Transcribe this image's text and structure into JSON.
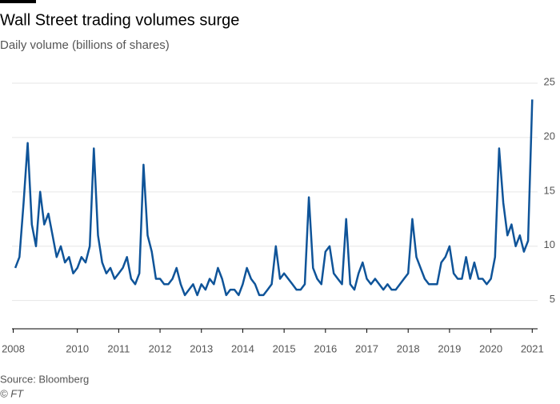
{
  "chart_data": {
    "type": "line",
    "title": "Wall Street trading volumes surge",
    "subtitle": "Daily volume (billions of shares)",
    "source": "Source: Bloomberg",
    "credit": "© FT",
    "xlim": [
      2008.42,
      2021.13
    ],
    "xticks": [
      {
        "value": 2008.45,
        "label": "2008"
      },
      2010,
      2011,
      2012,
      2013,
      2014,
      2015,
      2016,
      2017,
      2018,
      2019,
      2020,
      2021
    ],
    "ylim": [
      2.4,
      25
    ],
    "yticks": [
      5,
      10,
      15,
      20,
      25
    ],
    "grid": true,
    "x": [
      2008.5,
      2008.6,
      2008.7,
      2008.8,
      2008.9,
      2009.0,
      2009.1,
      2009.2,
      2009.3,
      2009.4,
      2009.5,
      2009.6,
      2009.7,
      2009.8,
      2009.9,
      2010.0,
      2010.1,
      2010.2,
      2010.3,
      2010.4,
      2010.5,
      2010.6,
      2010.7,
      2010.8,
      2010.9,
      2011.0,
      2011.1,
      2011.2,
      2011.3,
      2011.4,
      2011.5,
      2011.6,
      2011.7,
      2011.8,
      2011.9,
      2012.0,
      2012.1,
      2012.2,
      2012.3,
      2012.4,
      2012.5,
      2012.6,
      2012.7,
      2012.8,
      2012.9,
      2013.0,
      2013.1,
      2013.2,
      2013.3,
      2013.4,
      2013.5,
      2013.6,
      2013.7,
      2013.8,
      2013.9,
      2014.0,
      2014.1,
      2014.2,
      2014.3,
      2014.4,
      2014.5,
      2014.6,
      2014.7,
      2014.8,
      2014.9,
      2015.0,
      2015.1,
      2015.2,
      2015.3,
      2015.4,
      2015.5,
      2015.6,
      2015.7,
      2015.8,
      2015.9,
      2016.0,
      2016.1,
      2016.2,
      2016.3,
      2016.4,
      2016.5,
      2016.6,
      2016.7,
      2016.8,
      2016.9,
      2017.0,
      2017.1,
      2017.2,
      2017.3,
      2017.4,
      2017.5,
      2017.6,
      2017.7,
      2017.8,
      2017.9,
      2018.0,
      2018.1,
      2018.2,
      2018.3,
      2018.4,
      2018.5,
      2018.6,
      2018.7,
      2018.8,
      2018.9,
      2019.0,
      2019.1,
      2019.2,
      2019.3,
      2019.4,
      2019.5,
      2019.6,
      2019.7,
      2019.8,
      2019.9,
      2020.0,
      2020.1,
      2020.2,
      2020.3,
      2020.4,
      2020.5,
      2020.6,
      2020.7,
      2020.8,
      2020.9,
      2021.0
    ],
    "series": [
      {
        "name": "Daily volume",
        "color": "#0f5499",
        "values": [
          8,
          9,
          14,
          19.5,
          12,
          10,
          15,
          12,
          13,
          11,
          9,
          10,
          8.5,
          9,
          7.5,
          8,
          9,
          8.5,
          10,
          19,
          11,
          8.5,
          7.5,
          8,
          7,
          7.5,
          8,
          9,
          7,
          6.5,
          7.5,
          17.5,
          11,
          9.5,
          7,
          7,
          6.5,
          6.5,
          7,
          8,
          6.5,
          5.5,
          6,
          6.5,
          5.5,
          6.5,
          6,
          7,
          6.5,
          8,
          7,
          5.5,
          6,
          6,
          5.5,
          6.5,
          8,
          7,
          6.5,
          5.5,
          5.5,
          6,
          6.5,
          10,
          7,
          7.5,
          7,
          6.5,
          6,
          6,
          6.5,
          14.5,
          8,
          7,
          6.5,
          9.5,
          10,
          7.5,
          7,
          6.5,
          12.5,
          6.5,
          6,
          7.5,
          8.5,
          7,
          6.5,
          7,
          6.5,
          6,
          6.5,
          6,
          6,
          6.5,
          7,
          7.5,
          12.5,
          9,
          8,
          7,
          6.5,
          6.5,
          6.5,
          8.5,
          9,
          10,
          7.5,
          7,
          7,
          9,
          7,
          8.5,
          7,
          7,
          6.5,
          7,
          9,
          19,
          14,
          11,
          12,
          10,
          11,
          9.5,
          10.5,
          23.5
        ]
      }
    ]
  }
}
